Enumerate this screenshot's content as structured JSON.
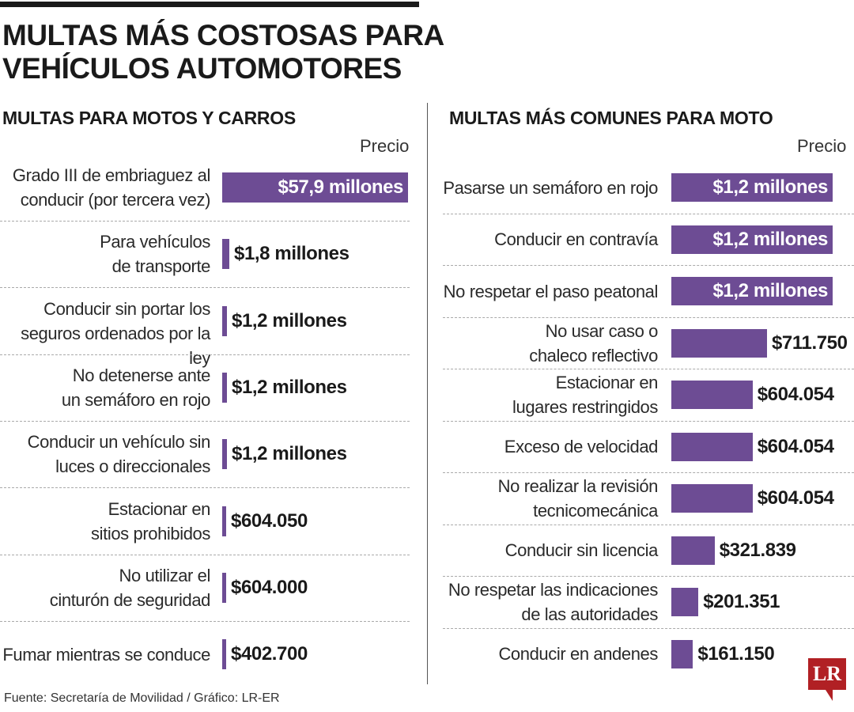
{
  "title": "MULTAS MÁS COSTOSAS PARA VEHÍCULOS AUTOMOTORES",
  "source": "Fuente: Secretaría de Movilidad / Gráfico: LR-ER",
  "logo": "LR",
  "colors": {
    "bar": "#6d4c94",
    "logo": "#b12024"
  },
  "chart_data": [
    {
      "type": "bar",
      "orientation": "horizontal",
      "title": "MULTAS PARA MOTOS Y CARROS",
      "column_header": "Precio",
      "categories": [
        "Grado III de embriaguez al conducir (por tercera vez)",
        "Para vehículos de transporte",
        "Conducir sin portar los seguros ordenados por la ley",
        "No detenerse ante un semáforo en rojo",
        "Conducir un vehículo sin luces o direccionales",
        "Estacionar en sitios prohibidos",
        "No utilizar el cinturón de seguridad",
        "Fumar mientras se conduce"
      ],
      "values": [
        57900000,
        1800000,
        1200000,
        1200000,
        1200000,
        604050,
        604000,
        402700
      ],
      "value_labels": [
        "$57,9 millones",
        "$1,8 millones",
        "$1,2 millones",
        "$1,2 millones",
        "$1,2 millones",
        "$604.050",
        "$604.000",
        "$402.700"
      ],
      "unit": "COP"
    },
    {
      "type": "bar",
      "orientation": "horizontal",
      "title": "MULTAS MÁS COMUNES PARA MOTO",
      "column_header": "Precio",
      "categories": [
        "Pasarse un semáforo en rojo",
        "Conducir en contravía",
        "No respetar el paso peatonal",
        "No usar caso o chaleco reflectivo",
        "Estacionar en lugares restringidos",
        "Exceso de velocidad",
        "No realizar la revisión tecnicomecánica",
        "Conducir sin licencia",
        "No respetar las indicaciones de las autoridades",
        "Conducir en andenes"
      ],
      "values": [
        1200000,
        1200000,
        1200000,
        711750,
        604054,
        604054,
        604054,
        321839,
        201351,
        161150
      ],
      "value_labels": [
        "$1,2 millones",
        "$1,2 millones",
        "$1,2 millones",
        "$711.750",
        "$604.054",
        "$604.054",
        "$604.054",
        "$321.839",
        "$201.351",
        "$161.150"
      ],
      "unit": "COP"
    }
  ]
}
